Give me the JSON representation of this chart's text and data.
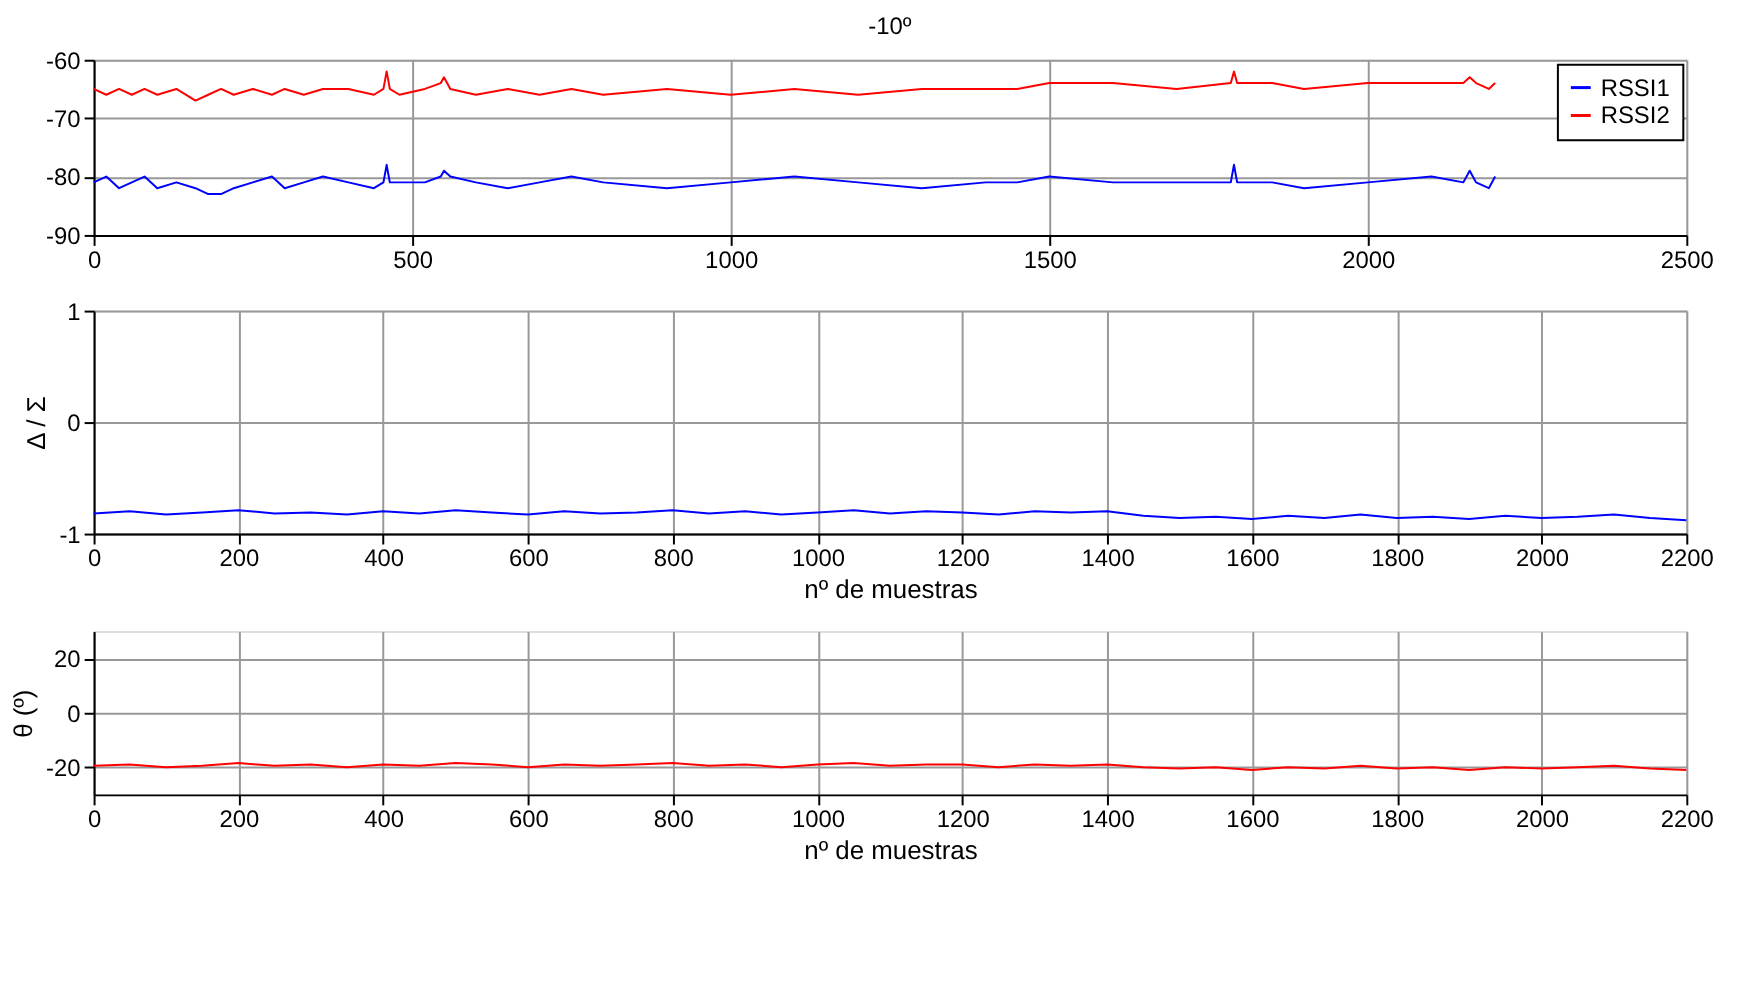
{
  "chart_data": [
    {
      "type": "line",
      "title": "-10º",
      "xlim": [
        0,
        2500
      ],
      "xticks": [
        0,
        500,
        1000,
        1500,
        2000,
        2500
      ],
      "ylim": [
        -90,
        -60
      ],
      "yticks": [
        -90,
        -80,
        -70,
        -60
      ],
      "grid": true,
      "legend": "top right",
      "x": [
        0,
        20,
        40,
        60,
        80,
        100,
        130,
        160,
        180,
        200,
        220,
        250,
        280,
        300,
        330,
        360,
        400,
        440,
        455,
        460,
        465,
        480,
        520,
        545,
        550,
        560,
        600,
        650,
        700,
        750,
        800,
        900,
        1000,
        1100,
        1200,
        1300,
        1400,
        1450,
        1500,
        1600,
        1700,
        1785,
        1790,
        1795,
        1850,
        1900,
        2000,
        2100,
        2150,
        2160,
        2170,
        2190,
        2200
      ],
      "series": [
        {
          "name": "RSSI1",
          "color": "#0000ff",
          "values": [
            -81,
            -80,
            -82,
            -81,
            -80,
            -82,
            -81,
            -82,
            -83,
            -83,
            -82,
            -81,
            -80,
            -82,
            -81,
            -80,
            -81,
            -82,
            -81,
            -78,
            -81,
            -81,
            -81,
            -80,
            -79,
            -80,
            -81,
            -82,
            -81,
            -80,
            -81,
            -82,
            -81,
            -80,
            -81,
            -82,
            -81,
            -81,
            -80,
            -81,
            -81,
            -81,
            -78,
            -81,
            -81,
            -82,
            -81,
            -80,
            -81,
            -79,
            -81,
            -82,
            -80
          ]
        },
        {
          "name": "RSSI2",
          "color": "#ff0000",
          "values": [
            -65,
            -66,
            -65,
            -66,
            -65,
            -66,
            -65,
            -67,
            -66,
            -65,
            -66,
            -65,
            -66,
            -65,
            -66,
            -65,
            -65,
            -66,
            -65,
            -62,
            -65,
            -66,
            -65,
            -64,
            -63,
            -65,
            -66,
            -65,
            -66,
            -65,
            -66,
            -65,
            -66,
            -65,
            -66,
            -65,
            -65,
            -65,
            -64,
            -64,
            -65,
            -64,
            -62,
            -64,
            -64,
            -65,
            -64,
            -64,
            -64,
            -63,
            -64,
            -65,
            -64
          ]
        }
      ]
    },
    {
      "type": "line",
      "xlabel": "nº de muestras",
      "ylabel": "Δ / Σ",
      "xlim": [
        0,
        2200
      ],
      "xticks": [
        0,
        200,
        400,
        600,
        800,
        1000,
        1200,
        1400,
        1600,
        1800,
        2000,
        2200
      ],
      "ylim": [
        -1,
        1
      ],
      "yticks": [
        -1,
        0,
        1
      ],
      "grid": true,
      "x": [
        0,
        50,
        100,
        150,
        200,
        250,
        300,
        350,
        400,
        450,
        500,
        550,
        600,
        650,
        700,
        750,
        800,
        850,
        900,
        950,
        1000,
        1050,
        1100,
        1150,
        1200,
        1250,
        1300,
        1350,
        1400,
        1450,
        1500,
        1550,
        1600,
        1650,
        1700,
        1750,
        1800,
        1850,
        1900,
        1950,
        2000,
        2050,
        2100,
        2150,
        2200
      ],
      "series": [
        {
          "color": "#0000ff",
          "values": [
            -0.82,
            -0.8,
            -0.83,
            -0.81,
            -0.79,
            -0.82,
            -0.81,
            -0.83,
            -0.8,
            -0.82,
            -0.79,
            -0.81,
            -0.83,
            -0.8,
            -0.82,
            -0.81,
            -0.79,
            -0.82,
            -0.8,
            -0.83,
            -0.81,
            -0.79,
            -0.82,
            -0.8,
            -0.81,
            -0.83,
            -0.8,
            -0.81,
            -0.8,
            -0.84,
            -0.86,
            -0.85,
            -0.87,
            -0.84,
            -0.86,
            -0.83,
            -0.86,
            -0.85,
            -0.87,
            -0.84,
            -0.86,
            -0.85,
            -0.83,
            -0.86,
            -0.88
          ]
        }
      ]
    },
    {
      "type": "line",
      "xlabel": "nº de muestras",
      "ylabel": "θ (º)",
      "xlim": [
        0,
        2200
      ],
      "xticks": [
        0,
        200,
        400,
        600,
        800,
        1000,
        1200,
        1400,
        1600,
        1800,
        2000,
        2200
      ],
      "ylim": [
        -30,
        30
      ],
      "yticks": [
        -20,
        0,
        20
      ],
      "grid": true,
      "x": [
        0,
        50,
        100,
        150,
        200,
        250,
        300,
        350,
        400,
        450,
        500,
        550,
        600,
        650,
        700,
        750,
        800,
        850,
        900,
        950,
        1000,
        1050,
        1100,
        1150,
        1200,
        1250,
        1300,
        1350,
        1400,
        1450,
        1500,
        1550,
        1600,
        1650,
        1700,
        1750,
        1800,
        1850,
        1900,
        1950,
        2000,
        2050,
        2100,
        2150,
        2200
      ],
      "series": [
        {
          "color": "#ff0000",
          "values": [
            -19.5,
            -19,
            -20,
            -19.5,
            -18.5,
            -19.5,
            -19,
            -20,
            -19,
            -19.5,
            -18.5,
            -19,
            -20,
            -19,
            -19.5,
            -19,
            -18.5,
            -19.5,
            -19,
            -20,
            -19,
            -18.5,
            -19.5,
            -19,
            -19,
            -20,
            -19,
            -19.5,
            -19,
            -20,
            -20.5,
            -20,
            -21,
            -20,
            -20.5,
            -19.5,
            -20.5,
            -20,
            -21,
            -20,
            -20.5,
            -20,
            -19.5,
            -20.5,
            -21
          ]
        }
      ]
    }
  ]
}
